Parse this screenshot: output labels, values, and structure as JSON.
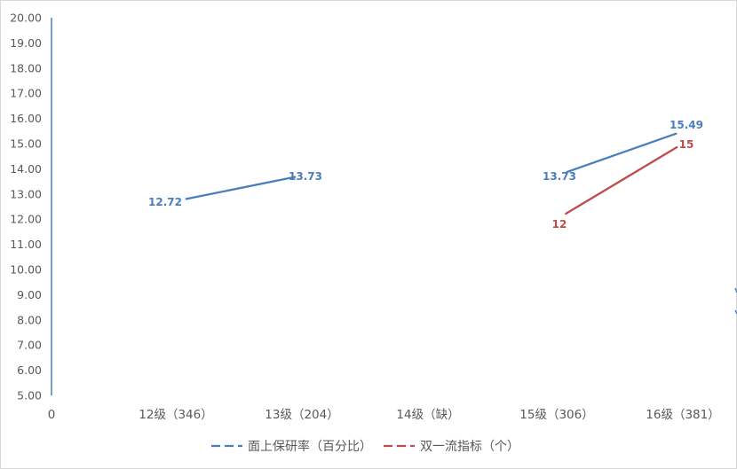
{
  "chart_data": {
    "type": "line",
    "categories": [
      "0",
      "12级（346）",
      "13级（204）",
      "14级（缺）",
      "15级（306）",
      "16级（381）"
    ],
    "ylim": [
      5,
      20
    ],
    "y_ticks": [
      "5.00",
      "6.00",
      "7.00",
      "8.00",
      "9.00",
      "10.00",
      "11.00",
      "12.00",
      "13.00",
      "14.00",
      "15.00",
      "16.00",
      "17.00",
      "18.00",
      "19.00",
      "20.00"
    ],
    "series": [
      {
        "name": "面上保研率（百分比）",
        "color": "#4a7ebb",
        "segments": [
          [
            {
              "x": "12级（346）",
              "y": 12.72,
              "label": "12.72"
            },
            {
              "x": "13级（204）",
              "y": 13.73,
              "label": "13.73"
            }
          ],
          [
            {
              "x": "15级（306）",
              "y": 13.73,
              "label": "13.73"
            },
            {
              "x": "16级（381）",
              "y": 15.49,
              "label": "15.49"
            }
          ]
        ]
      },
      {
        "name": "双一流指标（个）",
        "color": "#be4b48",
        "segments": [
          [
            {
              "x": "15级（306）",
              "y": 12,
              "label": "12"
            },
            {
              "x": "16级（381）",
              "y": 15,
              "label": "15"
            }
          ]
        ]
      }
    ],
    "grid": false,
    "legend": "bottom"
  }
}
